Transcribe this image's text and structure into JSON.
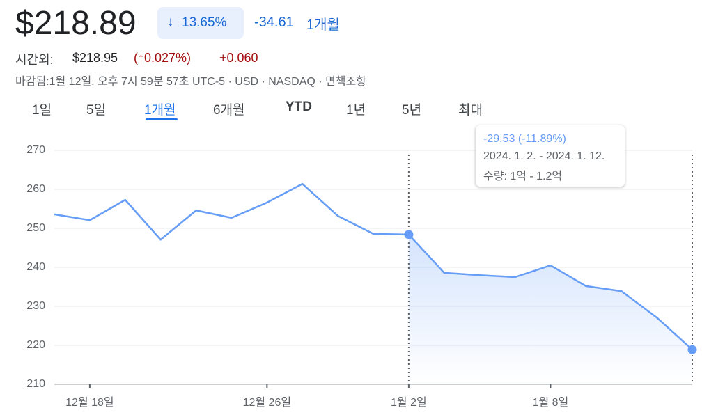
{
  "header": {
    "price": "$218.89",
    "change_pct": "13.65%",
    "change_abs": "-34.61",
    "period": "1개월",
    "after_hours_label": "시간외:",
    "after_hours_price": "$218.95",
    "after_hours_pct": "(↑0.027%)",
    "after_hours_change": "+0.060",
    "status": "마감됨:1월 12일, 오후 7시 59분 57초 UTC-5 · USD · NASDAQ · 면책조항"
  },
  "tabs": [
    "1일",
    "5일",
    "1개월",
    "6개월",
    "YTD",
    "1년",
    "5년",
    "최대"
  ],
  "chart_data": {
    "type": "line",
    "categories": [
      null,
      "12월 18일",
      null,
      null,
      null,
      null,
      "12월 26일",
      null,
      null,
      null,
      "1월 2일",
      null,
      null,
      null,
      "1월 8일",
      null,
      null,
      null,
      null
    ],
    "values": [
      253.6,
      252.1,
      257.3,
      247.1,
      254.6,
      252.7,
      256.6,
      261.4,
      253.2,
      248.6,
      248.42,
      238.6,
      238.0,
      237.5,
      240.5,
      235.2,
      233.9,
      227.1,
      218.89
    ],
    "color": "#669df6",
    "ylim": [
      210,
      270
    ],
    "yticks": [
      210,
      220,
      230,
      240,
      250,
      260,
      270
    ],
    "grid": true,
    "tooltip": {
      "change": "-29.53 (-11.89%)",
      "range": "2024. 1. 2. - 2024. 1. 12.",
      "volume": "수량: 1억 - 1.2억"
    }
  }
}
